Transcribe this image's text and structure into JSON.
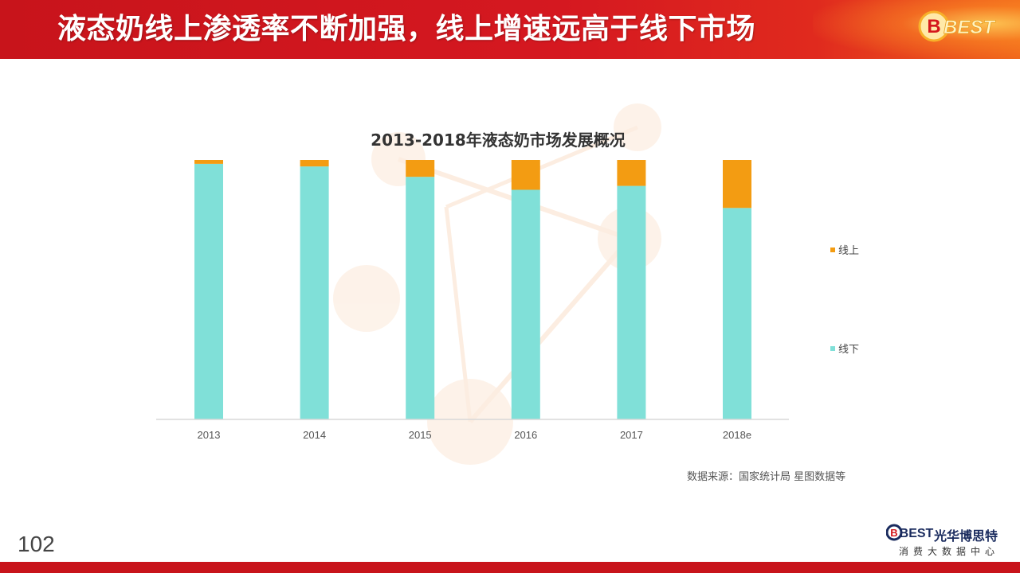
{
  "header": {
    "title": "液态奶线上渗透率不断加强，线上增速远高于线下市场",
    "logo_text": "BEST"
  },
  "page_number": "102",
  "source_note": "数据来源：国家统计局  星图数据等",
  "brand": {
    "mark": "BEST",
    "name": "光华博思特",
    "subtitle": "消费大数据中心"
  },
  "colors": {
    "header_red": "#c8141b",
    "online": "#f39c12",
    "offline": "#80e0d8"
  },
  "chart_data": {
    "type": "bar",
    "stacked": true,
    "title": "2013-2018年液态奶市场发展概况",
    "xlabel": "",
    "ylabel": "",
    "categories": [
      "2013",
      "2014",
      "2015",
      "2016",
      "2017",
      "2018e"
    ],
    "ylim": [
      0,
      100
    ],
    "series": [
      {
        "name": "线下",
        "color": "#80e0d8",
        "values": [
          98.5,
          97.5,
          93.5,
          88.5,
          90,
          81.5
        ]
      },
      {
        "name": "线上",
        "color": "#f39c12",
        "values": [
          1.5,
          2.5,
          6.5,
          11.5,
          10,
          18.5
        ]
      }
    ],
    "legend": {
      "position": "right",
      "entries": [
        "线上",
        "线下"
      ]
    },
    "grid": false
  }
}
